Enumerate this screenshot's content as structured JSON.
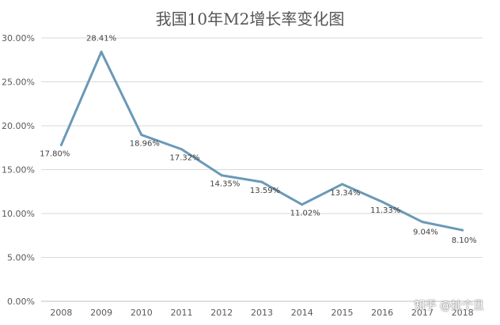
{
  "chart_data": {
    "type": "line",
    "title": "我国10年M2增长率变化图",
    "categories": [
      "2008",
      "2009",
      "2010",
      "2011",
      "2012",
      "2013",
      "2014",
      "2015",
      "2016",
      "2017",
      "2018"
    ],
    "series": [
      {
        "values": [
          17.8,
          28.41,
          18.96,
          17.32,
          14.35,
          13.59,
          11.02,
          13.34,
          11.33,
          9.04,
          8.1
        ],
        "labels": [
          "17.80%",
          "28.41%",
          "18.96%",
          "17.32%",
          "14.35%",
          "13.59%",
          "11.02%",
          "13.34%",
          "11.33%",
          "9.04%",
          "8.10%"
        ],
        "color": "#6a99b8"
      }
    ],
    "y_ticks": [
      "0.00%",
      "5.00%",
      "10.00%",
      "15.00%",
      "20.00%",
      "25.00%",
      "30.00%"
    ],
    "ylim": [
      0,
      30
    ],
    "grid": true,
    "legend": "none"
  },
  "watermark": "知乎 @扯个旦",
  "colors": {
    "grid": "#d9d9d9",
    "axis": "#bfbfbf",
    "line": "#6a99b8"
  }
}
